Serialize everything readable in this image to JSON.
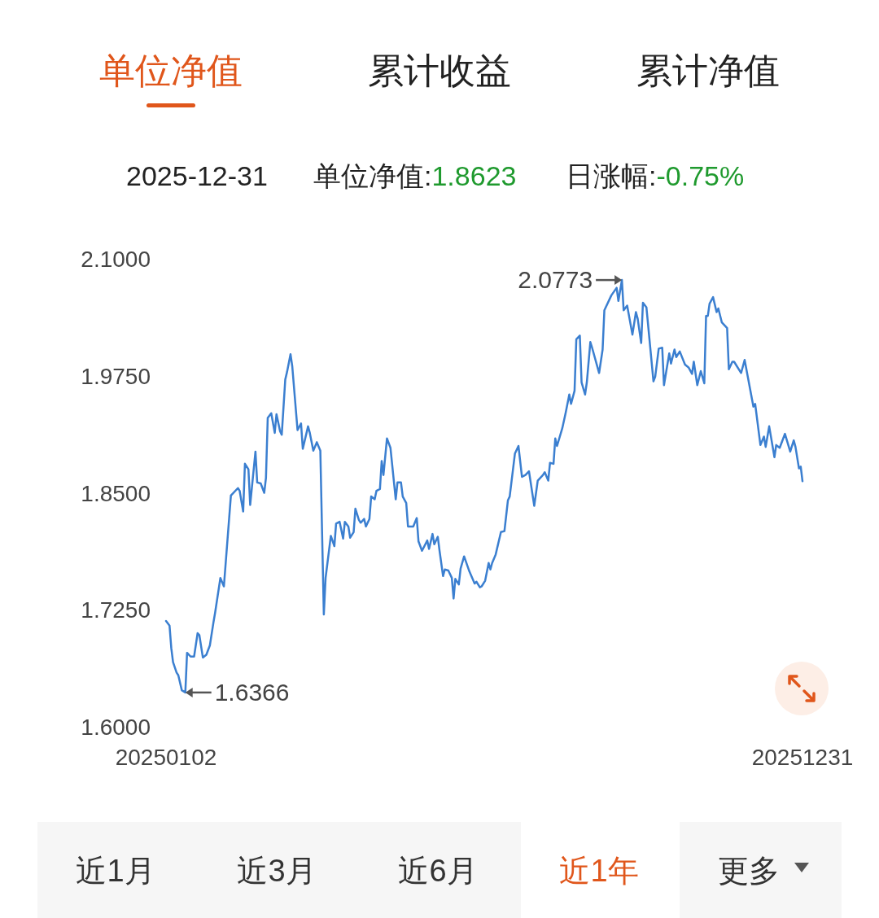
{
  "chart_data": {
    "type": "line",
    "title": "单位净值",
    "annotations": [
      "累计收益",
      "累计净值",
      "2025-12-31",
      "单位净值:",
      "1.8623",
      "日涨幅:",
      "-0.75%",
      "近1月",
      "近3月",
      "近6月",
      "近1年",
      "更多",
      {
        "text": "2.0773",
        "x": "2025-09-19",
        "y": 2.0773
      },
      {
        "text": "1.6366",
        "x": "2025-01-13",
        "y": 1.6366
      }
    ],
    "x": [
      "2025-01-02",
      "2025-01-04",
      "2025-01-05",
      "2025-01-06",
      "2025-01-08",
      "2025-01-09",
      "2025-01-11",
      "2025-01-13",
      "2025-01-14",
      "2025-01-16",
      "2025-01-18",
      "2025-01-20",
      "2025-01-21",
      "2025-01-23",
      "2025-01-25",
      "2025-01-27",
      "2025-01-29",
      "2025-01-30",
      "2025-02-02",
      "2025-02-04",
      "2025-02-08",
      "2025-02-12",
      "2025-02-13",
      "2025-02-15",
      "2025-02-16",
      "2025-02-18",
      "2025-02-19",
      "2025-02-22",
      "2025-02-23",
      "2025-02-25",
      "2025-02-27",
      "2025-02-28",
      "2025-03-01",
      "2025-03-03",
      "2025-03-05",
      "2025-03-06",
      "2025-03-08",
      "2025-03-09",
      "2025-03-11",
      "2025-03-12",
      "2025-03-14",
      "2025-03-15",
      "2025-03-18",
      "2025-03-20",
      "2025-03-21",
      "2025-03-24",
      "2025-03-25",
      "2025-03-27",
      "2025-03-29",
      "2025-03-31",
      "2025-04-02",
      "2025-04-03",
      "2025-04-06",
      "2025-04-08",
      "2025-04-09",
      "2025-04-11",
      "2025-04-13",
      "2025-04-14",
      "2025-04-16",
      "2025-04-17",
      "2025-04-19",
      "2025-04-20",
      "2025-04-22",
      "2025-04-23",
      "2025-04-25",
      "2025-04-26",
      "2025-04-28",
      "2025-04-29",
      "2025-05-01",
      "2025-05-02",
      "2025-05-04",
      "2025-05-05",
      "2025-05-06",
      "2025-05-08",
      "2025-05-10",
      "2025-05-13",
      "2025-05-14",
      "2025-05-16",
      "2025-05-17",
      "2025-05-19",
      "2025-05-20",
      "2025-05-23",
      "2025-05-25",
      "2025-05-26",
      "2025-05-28",
      "2025-05-31",
      "2025-06-01",
      "2025-06-03",
      "2025-06-04",
      "2025-06-06",
      "2025-06-07",
      "2025-06-09",
      "2025-06-10",
      "2025-06-12",
      "2025-06-14",
      "2025-06-15",
      "2025-06-16",
      "2025-06-18",
      "2025-06-19",
      "2025-06-21",
      "2025-06-24",
      "2025-06-27",
      "2025-06-28",
      "2025-06-30",
      "2025-07-01",
      "2025-07-03",
      "2025-07-05",
      "2025-07-06",
      "2025-07-07",
      "2025-07-09",
      "2025-07-12",
      "2025-07-14",
      "2025-07-16",
      "2025-07-17",
      "2025-07-20",
      "2025-07-22",
      "2025-07-24",
      "2025-07-26",
      "2025-07-28",
      "2025-07-31",
      "2025-08-02",
      "2025-08-05",
      "2025-08-06",
      "2025-08-08",
      "2025-08-09",
      "2025-08-11",
      "2025-08-12",
      "2025-08-13",
      "2025-08-16",
      "2025-08-18",
      "2025-08-20",
      "2025-08-21",
      "2025-08-23",
      "2025-08-24",
      "2025-08-26",
      "2025-08-27",
      "2025-08-29",
      "2025-08-30",
      "2025-09-01",
      "2025-09-02",
      "2025-09-06",
      "2025-09-08",
      "2025-09-09",
      "2025-09-13",
      "2025-09-16",
      "2025-09-17",
      "2025-09-19",
      "2025-09-20",
      "2025-09-22",
      "2025-09-25",
      "2025-09-27",
      "2025-09-28",
      "2025-09-30",
      "2025-10-01",
      "2025-10-03",
      "2025-10-07",
      "2025-10-08",
      "2025-10-10",
      "2025-10-12",
      "2025-10-13",
      "2025-10-16",
      "2025-10-17",
      "2025-10-19",
      "2025-10-20",
      "2025-10-22",
      "2025-10-25",
      "2025-10-27",
      "2025-10-29",
      "2025-10-30",
      "2025-11-01",
      "2025-11-03",
      "2025-11-05",
      "2025-11-06",
      "2025-11-07",
      "2025-11-08",
      "2025-11-10",
      "2025-11-12",
      "2025-11-13",
      "2025-11-15",
      "2025-11-18",
      "2025-11-19",
      "2025-11-21",
      "2025-11-22",
      "2025-11-26",
      "2025-11-28",
      "2025-12-03",
      "2025-12-04",
      "2025-12-07",
      "2025-12-09",
      "2025-12-10",
      "2025-12-12",
      "2025-12-15",
      "2025-12-16",
      "2025-12-18",
      "2025-12-21",
      "2025-12-24",
      "2025-12-26",
      "2025-12-27",
      "2025-12-29",
      "2025-12-30",
      "2025-12-31"
    ],
    "series": [
      {
        "color": "#3b7fd0",
        "values": [
          1.713,
          1.708,
          1.684,
          1.669,
          1.658,
          1.655,
          1.639,
          1.6366,
          1.679,
          1.675,
          1.675,
          1.7,
          1.698,
          1.674,
          1.677,
          1.687,
          1.711,
          1.722,
          1.759,
          1.75,
          1.847,
          1.855,
          1.852,
          1.83,
          1.881,
          1.875,
          1.837,
          1.894,
          1.861,
          1.86,
          1.85,
          1.866,
          1.93,
          1.935,
          1.914,
          1.934,
          1.916,
          1.912,
          1.971,
          1.979,
          1.998,
          1.985,
          1.917,
          1.924,
          1.897,
          1.921,
          1.914,
          1.895,
          1.904,
          1.895,
          1.72,
          1.759,
          1.804,
          1.793,
          1.817,
          1.819,
          1.801,
          1.819,
          1.814,
          1.802,
          1.808,
          1.833,
          1.821,
          1.818,
          1.822,
          1.814,
          1.822,
          1.846,
          1.843,
          1.852,
          1.854,
          1.884,
          1.869,
          1.908,
          1.898,
          1.843,
          1.861,
          1.861,
          1.846,
          1.839,
          1.814,
          1.814,
          1.823,
          1.798,
          1.788,
          1.799,
          1.79,
          1.806,
          1.795,
          1.803,
          1.788,
          1.761,
          1.768,
          1.767,
          1.759,
          1.737,
          1.758,
          1.752,
          1.769,
          1.782,
          1.766,
          1.753,
          1.755,
          1.749,
          1.75,
          1.756,
          1.775,
          1.768,
          1.775,
          1.784,
          1.808,
          1.809,
          1.842,
          1.846,
          1.892,
          1.9,
          1.867,
          1.869,
          1.873,
          1.836,
          1.863,
          1.869,
          1.872,
          1.863,
          1.882,
          1.881,
          1.908,
          1.9,
          1.919,
          1.936,
          1.955,
          1.945,
          1.959,
          2.014,
          2.018,
          1.968,
          1.955,
          1.968,
          2.011,
          2.005,
          1.978,
          2.003,
          2.045,
          2.061,
          2.069,
          2.055,
          2.0773,
          2.045,
          2.05,
          2.019,
          2.043,
          2.036,
          2.01,
          2.053,
          2.048,
          1.969,
          1.974,
          2.004,
          2.005,
          1.965,
          1.999,
          1.988,
          2.003,
          1.995,
          2.001,
          1.987,
          1.984,
          1.977,
          1.99,
          1.965,
          1.98,
          1.967,
          2.039,
          2.039,
          2.052,
          2.059,
          2.043,
          2.047,
          2.032,
          2.026,
          1.982,
          1.99,
          1.99,
          1.978,
          1.992,
          1.942,
          1.945,
          1.901,
          1.91,
          1.899,
          1.921,
          1.888,
          1.901,
          1.898,
          1.913,
          1.894,
          1.906,
          1.899,
          1.876,
          1.878,
          1.8623
        ]
      }
    ],
    "xlim": [
      "2025-01-02",
      "2025-12-31"
    ],
    "xticks": [
      {
        "value": "2025-01-02",
        "label": "20250102"
      },
      {
        "value": "2025-12-31",
        "label": "20251231"
      }
    ],
    "ylim": [
      1.6,
      2.1
    ],
    "yticks": [
      {
        "value": 1.6,
        "label": "1.6000"
      },
      {
        "value": 1.725,
        "label": "1.7250"
      },
      {
        "value": 1.85,
        "label": "1.8500"
      },
      {
        "value": 1.975,
        "label": "1.9750"
      },
      {
        "value": 2.1,
        "label": "2.1000"
      }
    ],
    "grid": false
  }
}
